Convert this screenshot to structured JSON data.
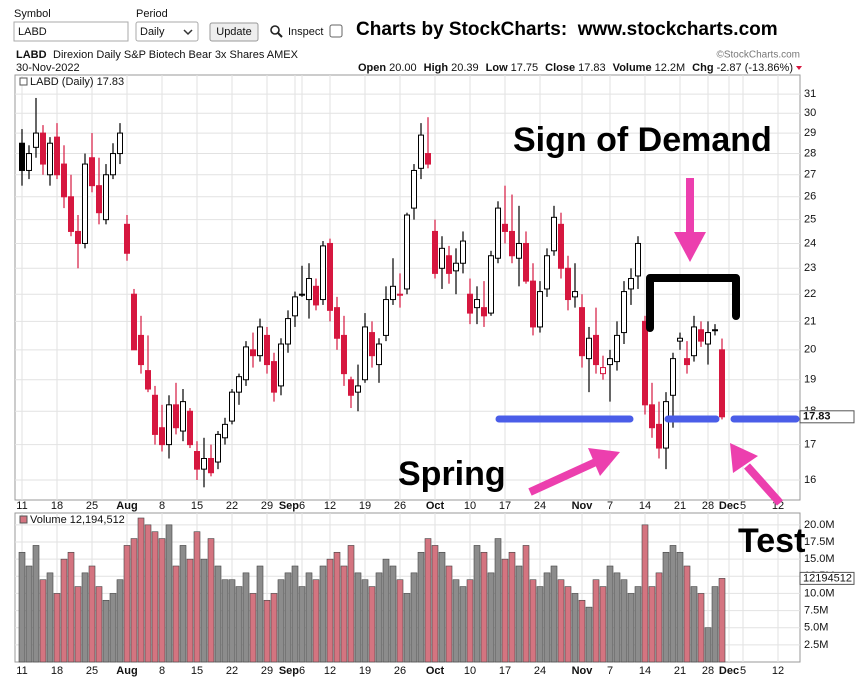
{
  "toolbar": {
    "symbol_label": "Symbol",
    "symbol": "LABD",
    "period_label": "Period",
    "period": "Daily",
    "update": "Update",
    "inspect": "Inspect",
    "banner": "Charts by StockCharts:  www.stockcharts.com"
  },
  "header": {
    "ticker": "LABD",
    "name": "Direxion Daily S&P Biotech Bear 3x Shares AMEX",
    "date": "30-Nov-2022",
    "copyright": "©StockCharts.com",
    "quote": [
      {
        "label": "Open",
        "value": "20.00"
      },
      {
        "label": "High",
        "value": "20.39"
      },
      {
        "label": "Low",
        "value": "17.75"
      },
      {
        "label": "Close",
        "value": "17.83"
      },
      {
        "label": "Volume",
        "value": "12.2M"
      },
      {
        "label": "Chg",
        "value": "-2.87 (-13.86%)"
      }
    ]
  },
  "annotations": {
    "demand": "Sign of Demand",
    "spring": "Spring",
    "test": "Test"
  },
  "chart_data": [
    {
      "type": "candlestick",
      "legend": "LABD (Daily) 17.83",
      "categories": [
        "11",
        null,
        null,
        null,
        null,
        "18",
        null,
        null,
        null,
        null,
        "25",
        null,
        null,
        null,
        null,
        "Aug",
        null,
        null,
        null,
        null,
        "8",
        null,
        null,
        null,
        null,
        "15",
        null,
        null,
        null,
        null,
        "22",
        null,
        null,
        null,
        null,
        "29",
        null,
        null,
        null,
        "Sep",
        "6",
        null,
        null,
        null,
        "12",
        null,
        null,
        null,
        null,
        "19",
        null,
        null,
        null,
        null,
        "26",
        null,
        null,
        null,
        null,
        "Oct",
        null,
        null,
        null,
        null,
        "10",
        null,
        null,
        null,
        null,
        "17",
        null,
        null,
        null,
        null,
        "24",
        null,
        null,
        null,
        null,
        null,
        "Nov",
        null,
        null,
        null,
        "7",
        null,
        null,
        null,
        null,
        "14",
        null,
        null,
        null,
        null,
        "21",
        null,
        null,
        null,
        "28",
        null,
        null,
        "Dec",
        null,
        "5",
        null,
        null,
        null,
        null,
        "12",
        null
      ],
      "open": [
        28.5,
        27.2,
        28.3,
        29.0,
        27.0,
        28.8,
        27.5,
        26.0,
        24.5,
        24.0,
        27.8,
        26.5,
        25.0,
        27.0,
        28.0,
        24.8,
        22.0,
        20.5,
        19.3,
        18.5,
        17.5,
        17.0,
        18.2,
        17.4,
        18.0,
        16.8,
        16.3,
        16.6,
        16.5,
        17.2,
        17.7,
        18.6,
        19.0,
        20.0,
        19.8,
        20.5,
        19.6,
        18.8,
        20.2,
        21.2,
        22.0,
        21.8,
        22.3,
        21.8,
        24.0,
        21.5,
        20.5,
        19.0,
        18.6,
        19.0,
        20.6,
        19.5,
        20.5,
        21.8,
        22.0,
        22.2,
        25.5,
        27.3,
        28.0,
        24.5,
        23.0,
        23.5,
        22.9,
        23.2,
        22.0,
        21.5,
        21.5,
        21.3,
        23.4,
        24.8,
        24.5,
        23.4,
        24.0,
        22.5,
        20.8,
        22.2,
        23.7,
        24.8,
        23.0,
        21.9,
        21.5,
        19.7,
        20.5,
        19.2,
        19.5,
        19.6,
        20.6,
        22.2,
        22.7,
        21.0,
        18.2,
        17.6,
        16.9,
        18.5,
        20.3,
        19.7,
        19.8,
        20.7,
        20.2,
        20.7,
        20.0,
        null,
        null,
        null,
        null,
        null,
        null,
        null,
        null,
        null
      ],
      "high": [
        29.2,
        28.4,
        30.8,
        29.4,
        28.8,
        29.5,
        28.4,
        27.0,
        25.2,
        28.0,
        29.0,
        27.8,
        27.5,
        28.5,
        29.5,
        25.2,
        22.2,
        21.2,
        20.5,
        18.8,
        18.2,
        18.5,
        18.9,
        18.7,
        18.1,
        17.1,
        17.2,
        17.0,
        17.4,
        17.8,
        18.7,
        19.2,
        20.3,
        20.6,
        21.1,
        20.8,
        19.9,
        20.4,
        21.4,
        22.1,
        23.1,
        23.2,
        22.6,
        24.1,
        24.2,
        21.9,
        21.2,
        19.1,
        19.5,
        21.3,
        21.0,
        20.4,
        22.3,
        23.4,
        22.8,
        25.3,
        27.5,
        29.5,
        29.8,
        25.0,
        24.3,
        23.9,
        23.8,
        24.5,
        22.6,
        22.3,
        22.5,
        23.7,
        25.8,
        26.5,
        26.1,
        25.6,
        24.5,
        23.2,
        22.5,
        23.8,
        25.6,
        25.3,
        23.5,
        23.2,
        22.0,
        20.8,
        21.5,
        19.8,
        20.0,
        21.0,
        22.5,
        23.0,
        24.3,
        21.2,
        18.9,
        18.3,
        18.6,
        19.9,
        20.6,
        20.3,
        21.2,
        21.0,
        21.0,
        20.9,
        20.39,
        null,
        null,
        null,
        null,
        null,
        null,
        null,
        null,
        null
      ],
      "low": [
        26.5,
        26.8,
        27.8,
        27.0,
        26.5,
        26.8,
        25.5,
        24.3,
        23.0,
        23.8,
        26.2,
        24.8,
        24.8,
        26.8,
        27.5,
        23.3,
        20.0,
        19.2,
        18.6,
        17.0,
        16.8,
        16.6,
        17.3,
        17.1,
        16.9,
        16.0,
        15.8,
        16.1,
        16.3,
        17.0,
        17.6,
        18.2,
        18.8,
        19.4,
        19.6,
        19.2,
        18.3,
        18.5,
        19.9,
        20.8,
        21.9,
        21.1,
        21.4,
        21.6,
        21.0,
        20.0,
        18.8,
        18.1,
        18.0,
        18.9,
        19.4,
        18.9,
        20.3,
        21.6,
        21.5,
        22.0,
        25.0,
        26.8,
        27.3,
        22.6,
        22.2,
        22.4,
        22.0,
        22.8,
        20.9,
        20.9,
        20.8,
        21.2,
        23.2,
        24.0,
        23.2,
        22.3,
        22.4,
        20.5,
        20.6,
        21.9,
        23.5,
        22.6,
        21.4,
        21.5,
        19.4,
        18.6,
        19.2,
        19.0,
        18.3,
        19.3,
        20.2,
        21.6,
        22.2,
        17.9,
        17.2,
        16.6,
        16.3,
        17.5,
        20.0,
        19.2,
        19.6,
        20.1,
        19.5,
        20.5,
        17.75,
        null,
        null,
        null,
        null,
        null,
        null,
        null,
        null,
        null
      ],
      "close": [
        27.2,
        28.0,
        29.0,
        27.5,
        28.5,
        27.0,
        26.0,
        24.5,
        24.0,
        27.5,
        26.5,
        25.3,
        27.0,
        28.0,
        29.0,
        23.6,
        20.0,
        19.5,
        18.7,
        17.3,
        17.0,
        18.2,
        17.5,
        18.3,
        17.0,
        16.3,
        16.6,
        16.2,
        17.3,
        17.6,
        18.6,
        19.1,
        20.1,
        19.8,
        20.8,
        19.5,
        18.6,
        20.2,
        21.1,
        21.9,
        22.0,
        22.6,
        21.6,
        23.9,
        21.4,
        20.4,
        19.2,
        18.5,
        18.8,
        20.8,
        19.8,
        20.2,
        21.8,
        22.3,
        22.0,
        25.2,
        27.2,
        28.9,
        27.5,
        22.8,
        23.8,
        22.8,
        23.2,
        24.1,
        21.3,
        21.8,
        21.2,
        23.5,
        25.5,
        24.5,
        23.5,
        24.0,
        22.5,
        20.8,
        22.1,
        23.5,
        25.1,
        23.0,
        21.8,
        22.1,
        19.8,
        20.4,
        19.5,
        19.4,
        19.7,
        20.5,
        22.1,
        22.6,
        24.0,
        18.2,
        17.5,
        16.9,
        18.3,
        19.7,
        20.4,
        19.5,
        20.8,
        20.3,
        20.6,
        20.7,
        17.83,
        null,
        null,
        null,
        null,
        null,
        null,
        null,
        null,
        null
      ],
      "ylim": [
        15.46,
        31.6
      ],
      "yticks": [
        16,
        17,
        18,
        19,
        20,
        21,
        22,
        23,
        24,
        25,
        26,
        27,
        28,
        29,
        30,
        31
      ],
      "log_scale": true,
      "grid": true,
      "up_color": "#000000",
      "down_color": "#d6173f"
    },
    {
      "type": "bar",
      "legend": "Volume 12,194,512",
      "values": [
        16000000,
        14000000,
        17000000,
        12000000,
        13000000,
        10000000,
        15000000,
        16000000,
        11000000,
        13000000,
        14000000,
        11000000,
        9000000,
        10000000,
        12000000,
        17000000,
        18000000,
        21000000,
        20000000,
        19000000,
        18000000,
        20000000,
        14000000,
        17000000,
        15000000,
        19000000,
        15000000,
        18000000,
        14000000,
        12000000,
        12000000,
        11000000,
        13000000,
        10000000,
        14000000,
        9000000,
        10000000,
        12000000,
        13000000,
        14000000,
        11000000,
        13000000,
        12000000,
        14000000,
        15000000,
        16000000,
        14000000,
        17000000,
        13000000,
        12000000,
        11000000,
        13000000,
        15000000,
        14000000,
        12000000,
        10000000,
        13000000,
        16000000,
        18000000,
        17000000,
        16000000,
        14000000,
        12000000,
        11000000,
        12000000,
        17000000,
        16000000,
        13000000,
        18000000,
        15000000,
        16000000,
        14000000,
        17000000,
        12000000,
        11000000,
        13000000,
        14000000,
        12000000,
        11000000,
        10000000,
        9000000,
        8000000,
        12000000,
        11000000,
        14000000,
        13000000,
        12000000,
        10000000,
        11000000,
        20000000,
        11000000,
        13000000,
        16000000,
        17000000,
        16000000,
        14000000,
        11000000,
        10000000,
        5000000,
        11000000,
        12194512,
        null,
        null,
        null,
        null,
        null,
        null,
        null,
        null,
        null
      ],
      "ylim": [
        0,
        21000000
      ],
      "yticks": [
        {
          "value": 2500000,
          "label": "2.5M"
        },
        {
          "value": 5000000,
          "label": "5.0M"
        },
        {
          "value": 7500000,
          "label": "7.5M"
        },
        {
          "value": 10000000,
          "label": "10.0M"
        },
        {
          "value": 12500000,
          "label": "12.5M"
        },
        {
          "value": 15000000,
          "label": "15.0M"
        },
        {
          "value": 17500000,
          "label": "17.5M"
        },
        {
          "value": 20000000,
          "label": "20.0M"
        }
      ],
      "grid": true,
      "up_color": "#8c8c8c",
      "down_color": "#d47480"
    }
  ]
}
